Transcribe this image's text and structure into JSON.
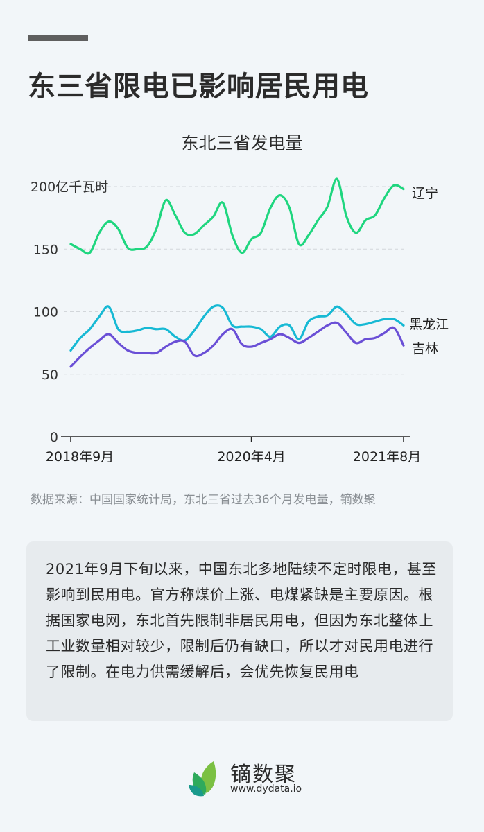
{
  "header": {
    "headline": "东三省限电已影响居民用电"
  },
  "chart_data": {
    "type": "line",
    "title": "东北三省发电量",
    "ylabel": "亿千瓦时",
    "xlabel": "",
    "ylim": [
      0,
      200
    ],
    "yticks": [
      0,
      50,
      100,
      150,
      200
    ],
    "ytick_labels": [
      "0",
      "50",
      "100",
      "150",
      "200亿千瓦时"
    ],
    "xticks": [
      "2018年9月",
      "2020年4月",
      "2021年8月"
    ],
    "grid": true,
    "legend_position": "inline-right",
    "x": [
      "2018-09",
      "2018-10",
      "2018-11",
      "2018-12",
      "2019-01",
      "2019-02",
      "2019-03",
      "2019-04",
      "2019-05",
      "2019-06",
      "2019-07",
      "2019-08",
      "2019-09",
      "2019-10",
      "2019-11",
      "2019-12",
      "2020-01",
      "2020-02",
      "2020-03",
      "2020-04",
      "2020-05",
      "2020-06",
      "2020-07",
      "2020-08",
      "2020-09",
      "2020-10",
      "2020-11",
      "2020-12",
      "2021-01",
      "2021-02",
      "2021-03",
      "2021-04",
      "2021-05",
      "2021-06",
      "2021-07",
      "2021-08"
    ],
    "series": [
      {
        "name": "辽宁",
        "color": "#1fd67f",
        "values": [
          154,
          150,
          147,
          163,
          172,
          166,
          151,
          150,
          152,
          166,
          189,
          177,
          163,
          162,
          169,
          176,
          187,
          161,
          147,
          158,
          163,
          183,
          193,
          183,
          154,
          161,
          173,
          184,
          206,
          176,
          163,
          173,
          177,
          191,
          201,
          198
        ]
      },
      {
        "name": "黑龙江",
        "color": "#17b9d4",
        "values": [
          69,
          79,
          86,
          96,
          104,
          86,
          84,
          85,
          87,
          86,
          86,
          80,
          77,
          85,
          96,
          104,
          103,
          89,
          88,
          88,
          86,
          80,
          88,
          89,
          78,
          92,
          96,
          97,
          104,
          98,
          90,
          90,
          92,
          94,
          94,
          89
        ]
      },
      {
        "name": "吉林",
        "color": "#6a4fd6",
        "values": [
          56,
          64,
          71,
          77,
          82,
          75,
          69,
          67,
          67,
          67,
          72,
          76,
          76,
          65,
          67,
          73,
          82,
          86,
          74,
          72,
          75,
          78,
          82,
          79,
          75,
          79,
          84,
          89,
          91,
          83,
          75,
          78,
          79,
          83,
          87,
          73
        ]
      }
    ]
  },
  "source": "数据来源：中国国家统计局，东北三省过去36个月发电量，镝数聚",
  "card": {
    "text": "2021年9月下旬以来，中国东北多地陆续不定时限电，甚至影响到民用电。官方称煤价上涨、电煤紧缺是主要原因。根据国家电网，东北首先限制非居民用电，但因为东北整体上工业数量相对较少，限制后仍有缺口，所以才对民用电进行了限制。在电力供需缓解后，会优先恢复民用电"
  },
  "logo": {
    "name": "镝数聚",
    "url": "www.dydata.io",
    "colors": [
      "#7bc043",
      "#2eaa5c",
      "#1a9a8c"
    ]
  }
}
